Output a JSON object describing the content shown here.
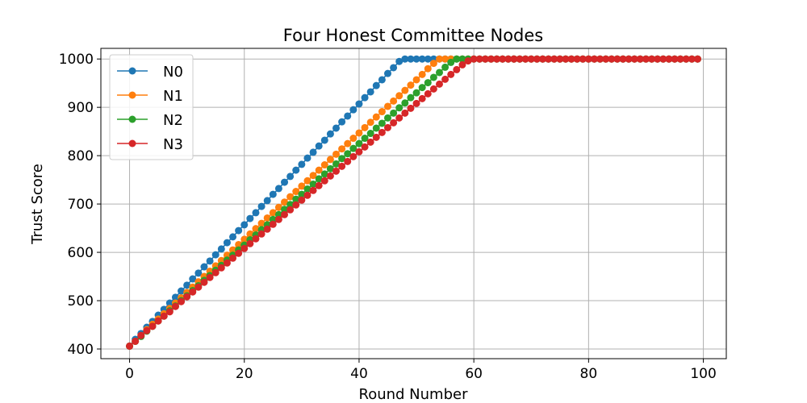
{
  "chart_data": {
    "type": "line",
    "title": "Four Honest Committee Nodes",
    "xlabel": "Round Number",
    "ylabel": "Trust Score",
    "xlim": [
      -5,
      104
    ],
    "ylim": [
      380,
      1022
    ],
    "x_ticks": [
      0,
      20,
      40,
      60,
      80,
      100
    ],
    "y_ticks": [
      400,
      500,
      600,
      700,
      800,
      900,
      1000
    ],
    "grid": true,
    "legend_position": "upper-left",
    "markers": true,
    "x": [
      0,
      1,
      2,
      3,
      4,
      5,
      6,
      7,
      8,
      9,
      10,
      11,
      12,
      13,
      14,
      15,
      16,
      17,
      18,
      19,
      20,
      21,
      22,
      23,
      24,
      25,
      26,
      27,
      28,
      29,
      30,
      31,
      32,
      33,
      34,
      35,
      36,
      37,
      38,
      39,
      40,
      41,
      42,
      43,
      44,
      45,
      46,
      47,
      48,
      49,
      50,
      51,
      52,
      53,
      54,
      55,
      56,
      57,
      58,
      59,
      60,
      61,
      62,
      63,
      64,
      65,
      66,
      67,
      68,
      69,
      70,
      71,
      72,
      73,
      74,
      75,
      76,
      77,
      78,
      79,
      80,
      81,
      82,
      83,
      84,
      85,
      86,
      87,
      88,
      89,
      90,
      91,
      92,
      93,
      94,
      95,
      96,
      97,
      98,
      99
    ],
    "series": [
      {
        "name": "N0",
        "color": "#1f77b4",
        "values": [
          406,
          420,
          432,
          445,
          457,
          470,
          482,
          495,
          507,
          520,
          532,
          545,
          557,
          570,
          582,
          595,
          607,
          620,
          632,
          645,
          657,
          670,
          682,
          695,
          707,
          720,
          732,
          745,
          757,
          770,
          782,
          795,
          807,
          820,
          832,
          845,
          857,
          870,
          882,
          895,
          907,
          920,
          932,
          945,
          957,
          970,
          982,
          995,
          1000,
          1000,
          1000,
          1000,
          1000,
          1000,
          1000,
          1000,
          1000,
          1000,
          1000,
          1000,
          1000,
          1000,
          1000,
          1000,
          1000,
          1000,
          1000,
          1000,
          1000,
          1000,
          1000,
          1000,
          1000,
          1000,
          1000,
          1000,
          1000,
          1000,
          1000,
          1000,
          1000,
          1000,
          1000,
          1000,
          1000,
          1000,
          1000,
          1000,
          1000,
          1000,
          1000,
          1000,
          1000,
          1000,
          1000,
          1000,
          1000,
          1000,
          1000,
          1000
        ]
      },
      {
        "name": "N1",
        "color": "#ff7f0e",
        "values": [
          406,
          416,
          428,
          440,
          451,
          462,
          473,
          484,
          495,
          506,
          517,
          528,
          539,
          550,
          561,
          572,
          583,
          594,
          605,
          616,
          627,
          638,
          649,
          660,
          671,
          682,
          693,
          704,
          715,
          726,
          737,
          748,
          759,
          770,
          781,
          792,
          803,
          814,
          825,
          836,
          847,
          858,
          869,
          880,
          891,
          902,
          913,
          924,
          935,
          946,
          957,
          968,
          980,
          991,
          1000,
          1000,
          1000,
          1000,
          1000,
          1000,
          1000,
          1000,
          1000,
          1000,
          1000,
          1000,
          1000,
          1000,
          1000,
          1000,
          1000,
          1000,
          1000,
          1000,
          1000,
          1000,
          1000,
          1000,
          1000,
          1000,
          1000,
          1000,
          1000,
          1000,
          1000,
          1000,
          1000,
          1000,
          1000,
          1000,
          1000,
          1000,
          1000,
          1000,
          1000,
          1000,
          1000,
          1000,
          1000,
          1000
        ]
      },
      {
        "name": "N2",
        "color": "#2ca02c",
        "values": [
          406,
          416,
          426,
          437,
          447,
          458,
          468,
          479,
          489,
          500,
          510,
          521,
          531,
          542,
          552,
          563,
          573,
          584,
          594,
          605,
          615,
          626,
          636,
          647,
          657,
          668,
          678,
          689,
          699,
          710,
          720,
          731,
          741,
          752,
          762,
          773,
          783,
          794,
          804,
          815,
          825,
          836,
          846,
          857,
          867,
          878,
          888,
          899,
          909,
          920,
          930,
          941,
          951,
          962,
          972,
          983,
          993,
          1000,
          1000,
          1000,
          1000,
          1000,
          1000,
          1000,
          1000,
          1000,
          1000,
          1000,
          1000,
          1000,
          1000,
          1000,
          1000,
          1000,
          1000,
          1000,
          1000,
          1000,
          1000,
          1000,
          1000,
          1000,
          1000,
          1000,
          1000,
          1000,
          1000,
          1000,
          1000,
          1000,
          1000,
          1000,
          1000,
          1000,
          1000,
          1000,
          1000,
          1000,
          1000,
          1000
        ]
      },
      {
        "name": "N3",
        "color": "#d62728",
        "values": [
          406,
          416,
          428,
          438,
          447,
          458,
          468,
          477,
          488,
          498,
          508,
          518,
          528,
          538,
          548,
          558,
          568,
          578,
          588,
          598,
          608,
          618,
          628,
          638,
          648,
          658,
          668,
          678,
          688,
          698,
          708,
          718,
          728,
          738,
          748,
          758,
          768,
          778,
          788,
          798,
          808,
          818,
          828,
          838,
          848,
          858,
          868,
          878,
          888,
          898,
          908,
          918,
          928,
          938,
          948,
          958,
          968,
          978,
          988,
          996,
          1000,
          1000,
          1000,
          1000,
          1000,
          1000,
          1000,
          1000,
          1000,
          1000,
          1000,
          1000,
          1000,
          1000,
          1000,
          1000,
          1000,
          1000,
          1000,
          1000,
          1000,
          1000,
          1000,
          1000,
          1000,
          1000,
          1000,
          1000,
          1000,
          1000,
          1000,
          1000,
          1000,
          1000,
          1000,
          1000,
          1000,
          1000,
          1000,
          1000
        ]
      }
    ]
  }
}
